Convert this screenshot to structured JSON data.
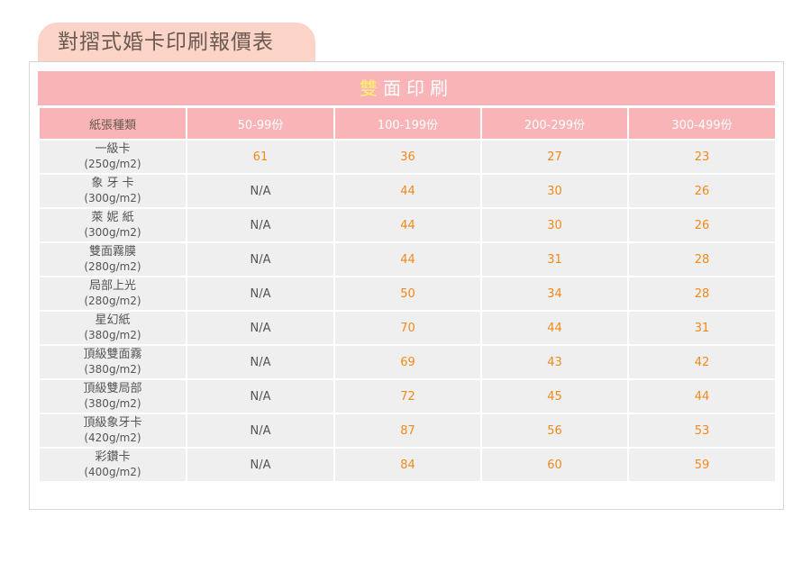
{
  "page_title": "對摺式婚卡印刷報價表",
  "banner": {
    "accent_char": "雙",
    "rest": "面印刷"
  },
  "columns": [
    "紙張種類",
    "50-99份",
    "100-199份",
    "200-299份",
    "300-499份"
  ],
  "rows": [
    {
      "name": "一級卡",
      "weight": "(250g/m2)",
      "prices": [
        "61",
        "36",
        "27",
        "23"
      ]
    },
    {
      "name": "象 牙 卡",
      "weight": "(300g/m2)",
      "prices": [
        "N/A",
        "44",
        "30",
        "26"
      ]
    },
    {
      "name": "萊 妮 紙",
      "weight": "(300g/m2)",
      "prices": [
        "N/A",
        "44",
        "30",
        "26"
      ]
    },
    {
      "name": "雙面霧膜",
      "weight": "(280g/m2)",
      "prices": [
        "N/A",
        "44",
        "31",
        "28"
      ]
    },
    {
      "name": "局部上光",
      "weight": "(280g/m2)",
      "prices": [
        "N/A",
        "50",
        "34",
        "28"
      ]
    },
    {
      "name": "星幻紙",
      "weight": "(380g/m2)",
      "prices": [
        "N/A",
        "70",
        "44",
        "31"
      ]
    },
    {
      "name": "頂級雙面霧",
      "weight": "(380g/m2)",
      "prices": [
        "N/A",
        "69",
        "43",
        "42"
      ]
    },
    {
      "name": "頂級雙局部",
      "weight": "(380g/m2)",
      "prices": [
        "N/A",
        "72",
        "45",
        "44"
      ]
    },
    {
      "name": "頂級象牙卡",
      "weight": "(420g/m2)",
      "prices": [
        "N/A",
        "87",
        "56",
        "53"
      ]
    },
    {
      "name": "彩鑽卡",
      "weight": "(400g/m2)",
      "prices": [
        "N/A",
        "84",
        "60",
        "59"
      ]
    }
  ],
  "colors": {
    "header_pink": "#f8b4b6",
    "tab_peach": "#fbd3c7",
    "price_orange": "#f08a1c",
    "banner_accent": "#fff36b",
    "row_gray": "#efefef"
  }
}
